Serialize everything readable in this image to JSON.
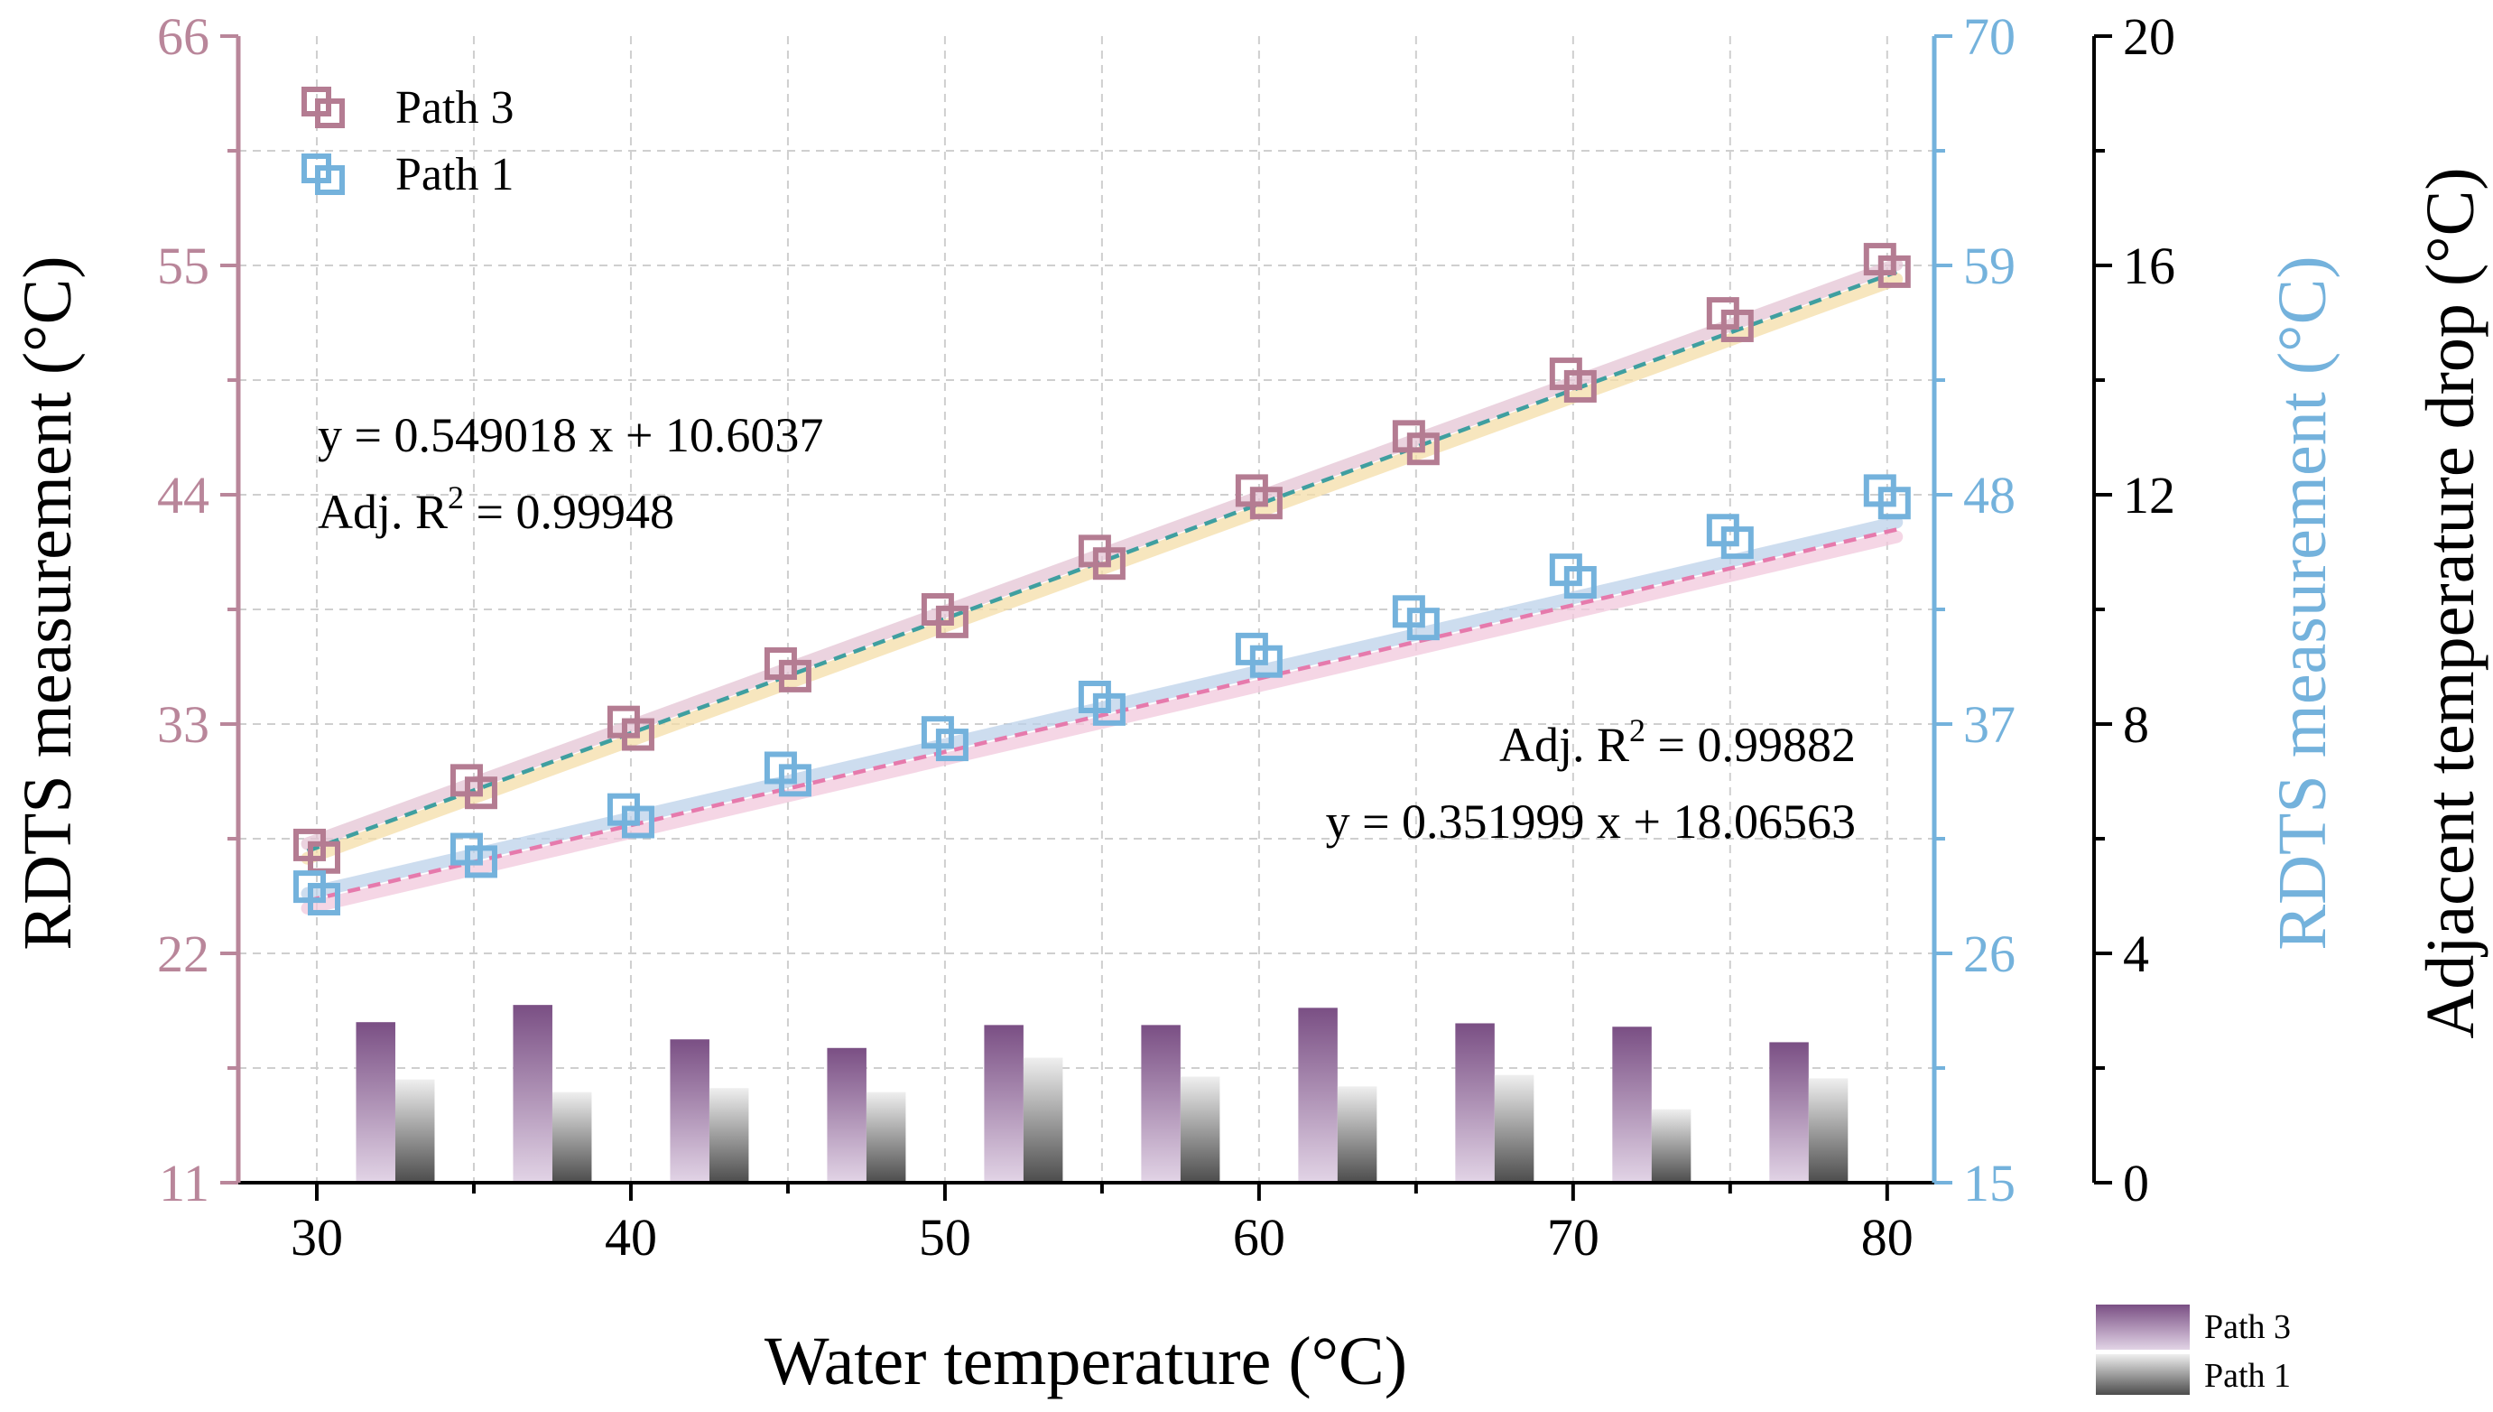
{
  "chart_data": {
    "type": "scatter",
    "xlabel": "Water temperature (°C)",
    "x_ticks": [
      "30",
      "40",
      "50",
      "60",
      "70",
      "80"
    ],
    "xlim": [
      27.5,
      81.5
    ],
    "axes": {
      "left": {
        "label": "RDTS measurement (°C)",
        "ylim": [
          11,
          66
        ],
        "ticks": [
          "11",
          "22",
          "33",
          "44",
          "55",
          "66"
        ],
        "color": "#b9869a"
      },
      "right_blue": {
        "label": "RDTS measurement (°C)",
        "ylim": [
          15,
          70
        ],
        "ticks": [
          "15",
          "26",
          "37",
          "48",
          "59",
          "70"
        ],
        "color": "#74b2dc"
      },
      "right_black": {
        "label": "Adjacent temperature drop (°C)",
        "ylim": [
          0,
          20
        ],
        "ticks": [
          "0",
          "4",
          "8",
          "12",
          "16",
          "20"
        ],
        "color": "#000000"
      }
    },
    "legend_markers": [
      {
        "name": "Path 3",
        "color": "#b47c92"
      },
      {
        "name": "Path 1",
        "color": "#74b2dc"
      }
    ],
    "legend_bars": [
      {
        "name": "Path 3"
      },
      {
        "name": "Path 1"
      }
    ],
    "x": [
      30,
      35,
      40,
      45,
      50,
      55,
      60,
      65,
      70,
      75,
      80
    ],
    "series": [
      {
        "name": "Path 3",
        "axis": "left",
        "color": "#b47c92",
        "values_a": [
          27.2,
          30.3,
          33.1,
          35.9,
          38.5,
          41.3,
          44.2,
          46.8,
          49.8,
          52.7,
          55.3
        ],
        "values_b": [
          26.6,
          29.7,
          32.5,
          35.3,
          37.9,
          40.7,
          43.6,
          46.2,
          49.2,
          52.1,
          54.7
        ],
        "fit": {
          "slope": 0.549018,
          "intercept": 10.6037,
          "color": "#3f9fa0",
          "band_colors": [
            "#f4dea8",
            "#e4c4d4"
          ]
        },
        "annotation": {
          "equation": "y = 0.549018 x + 10.6037",
          "r2_prefix": "Adj. R",
          "r2_sup": "2",
          "r2_value": " = 0.99948"
        }
      },
      {
        "name": "Path 1",
        "axis": "right_blue",
        "color": "#74b2dc",
        "values_a": [
          29.2,
          31.0,
          32.9,
          34.9,
          36.6,
          38.3,
          40.6,
          42.4,
          44.4,
          46.3,
          48.2
        ],
        "values_b": [
          28.6,
          30.4,
          32.3,
          34.3,
          36.0,
          37.7,
          40.0,
          41.8,
          43.8,
          45.7,
          47.6
        ],
        "fit": {
          "slope": 0.351999,
          "intercept": 18.06563,
          "color": "#e67aac",
          "band_colors": [
            "#f2c8dc",
            "#bcd2ea"
          ]
        },
        "annotation": {
          "equation": "y = 0.351999 x + 18.06563",
          "r2_prefix": "Adj. R",
          "r2_sup": "2",
          "r2_value": " = 0.99882"
        }
      }
    ],
    "bars": {
      "axis": "right_black",
      "positions": [
        32.5,
        37.5,
        42.5,
        47.5,
        52.5,
        57.5,
        62.5,
        67.5,
        72.5,
        77.5
      ],
      "path3": [
        2.8,
        3.1,
        2.5,
        2.35,
        2.75,
        2.75,
        3.05,
        2.78,
        2.72,
        2.45
      ],
      "path1": [
        1.8,
        1.58,
        1.65,
        1.58,
        2.18,
        1.85,
        1.68,
        1.88,
        1.28,
        1.82
      ],
      "path3_colors": [
        "#7a4f84",
        "#e2d4e6"
      ],
      "path1_colors": [
        "#4c4c4c",
        "#efefef"
      ]
    }
  }
}
